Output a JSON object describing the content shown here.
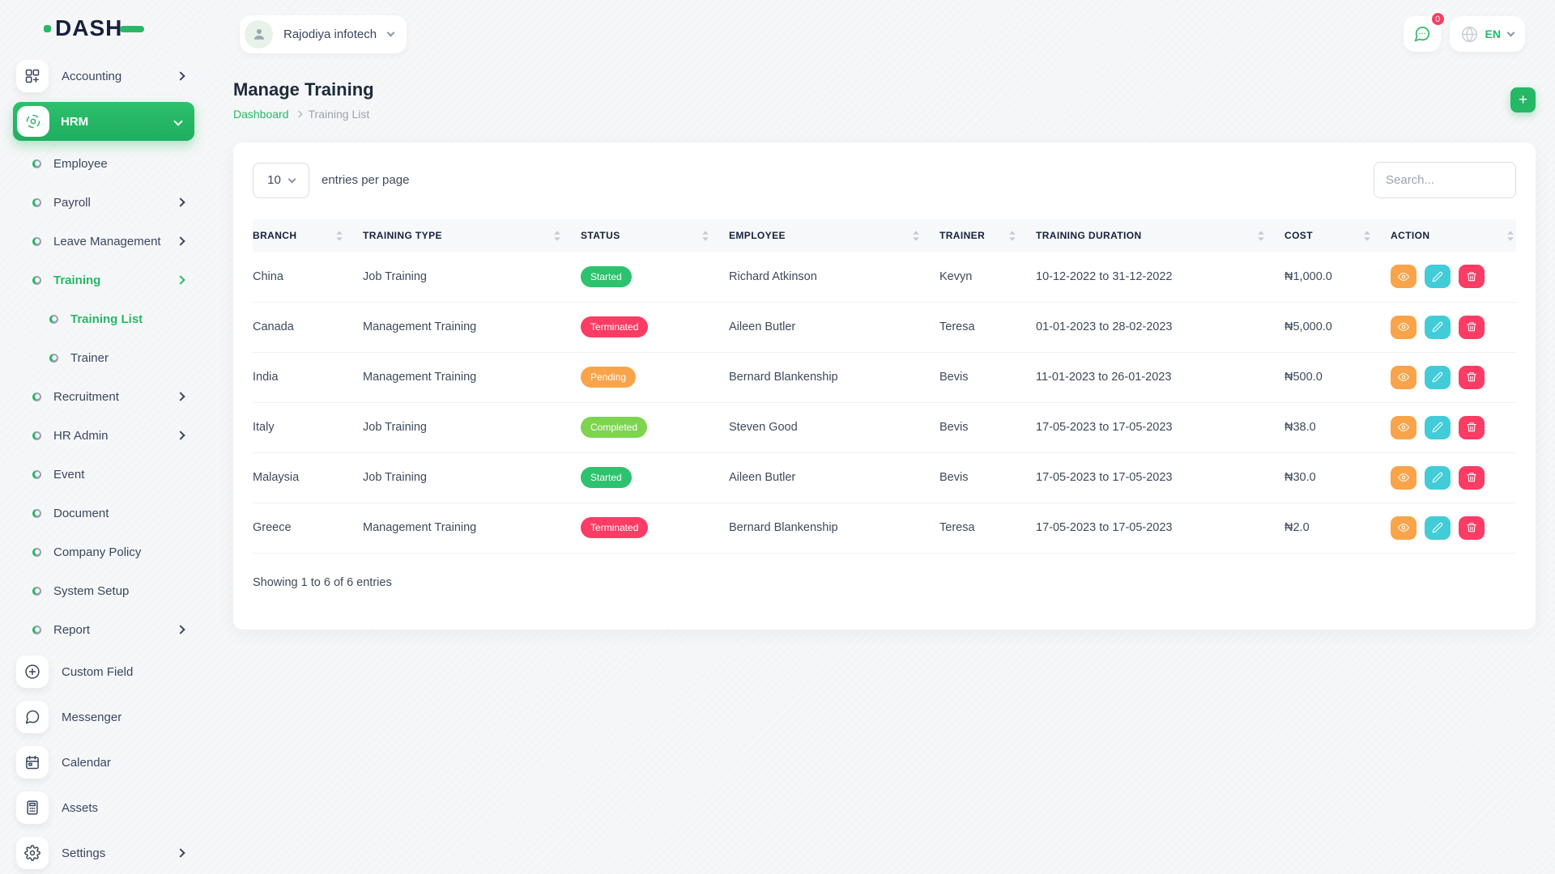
{
  "brand": {
    "name": "DASH"
  },
  "topbar": {
    "company_name": "Rajodiya infotech",
    "chat_badge": "0",
    "language": "EN"
  },
  "page": {
    "title": "Manage Training",
    "breadcrumb_home": "Dashboard",
    "breadcrumb_current": "Training List",
    "add_button": "+"
  },
  "sidebar": {
    "items": [
      {
        "label": "Accounting",
        "style": "box",
        "icon": "grid-plus-icon",
        "chevron": "right"
      },
      {
        "label": "HRM",
        "style": "box",
        "icon": "hrm-icon",
        "chevron": "down",
        "active_main": true
      },
      {
        "label": "Employee",
        "style": "bullet"
      },
      {
        "label": "Payroll",
        "style": "bullet",
        "chevron": "right"
      },
      {
        "label": "Leave Management",
        "style": "bullet",
        "chevron": "right"
      },
      {
        "label": "Training",
        "style": "bullet",
        "chevron": "right",
        "active": true
      },
      {
        "label": "Training List",
        "style": "bullet",
        "indent": 1,
        "active": true
      },
      {
        "label": "Trainer",
        "style": "bullet",
        "indent": 1
      },
      {
        "label": "Recruitment",
        "style": "bullet",
        "chevron": "right"
      },
      {
        "label": "HR Admin",
        "style": "bullet",
        "chevron": "right"
      },
      {
        "label": "Event",
        "style": "bullet"
      },
      {
        "label": "Document",
        "style": "bullet"
      },
      {
        "label": "Company Policy",
        "style": "bullet"
      },
      {
        "label": "System Setup",
        "style": "bullet"
      },
      {
        "label": "Report",
        "style": "bullet",
        "chevron": "right"
      },
      {
        "label": "Custom Field",
        "style": "box",
        "icon": "circle-plus-icon"
      },
      {
        "label": "Messenger",
        "style": "box",
        "icon": "chat-icon"
      },
      {
        "label": "Calendar",
        "style": "box",
        "icon": "calendar-icon"
      },
      {
        "label": "Assets",
        "style": "box",
        "icon": "calculator-icon"
      },
      {
        "label": "Settings",
        "style": "box",
        "icon": "gear-icon",
        "chevron": "right"
      }
    ]
  },
  "table_card": {
    "entries_per_page_value": "10",
    "entries_per_page_label": "entries per page",
    "search_placeholder": "Search...",
    "columns": [
      "BRANCH",
      "TRAINING TYPE",
      "STATUS",
      "EMPLOYEE",
      "TRAINER",
      "TRAINING DURATION",
      "COST",
      "ACTION"
    ],
    "rows": [
      {
        "branch": "China",
        "training_type": "Job Training",
        "status": "Started",
        "employee": "Richard Atkinson",
        "trainer": "Kevyn",
        "duration": "10-12-2022 to 31-12-2022",
        "cost": "₦1,000.0"
      },
      {
        "branch": "Canada",
        "training_type": "Management Training",
        "status": "Terminated",
        "employee": "Aileen Butler",
        "trainer": "Teresa",
        "duration": "01-01-2023 to 28-02-2023",
        "cost": "₦5,000.0"
      },
      {
        "branch": "India",
        "training_type": "Management Training",
        "status": "Pending",
        "employee": "Bernard Blankenship",
        "trainer": "Bevis",
        "duration": "11-01-2023 to 26-01-2023",
        "cost": "₦500.0"
      },
      {
        "branch": "Italy",
        "training_type": "Job Training",
        "status": "Completed",
        "employee": "Steven Good",
        "trainer": "Bevis",
        "duration": "17-05-2023 to 17-05-2023",
        "cost": "₦38.0"
      },
      {
        "branch": "Malaysia",
        "training_type": "Job Training",
        "status": "Started",
        "employee": "Aileen Butler",
        "trainer": "Bevis",
        "duration": "17-05-2023 to 17-05-2023",
        "cost": "₦30.0"
      },
      {
        "branch": "Greece",
        "training_type": "Management Training",
        "status": "Terminated",
        "employee": "Bernard Blankenship",
        "trainer": "Teresa",
        "duration": "17-05-2023 to 17-05-2023",
        "cost": "₦2.0"
      }
    ],
    "footer": "Showing 1 to 6 of 6 entries"
  },
  "colors": {
    "accent": "#27b966",
    "status": {
      "Started": "#2dc26e",
      "Terminated": "#fc3c64",
      "Pending": "#f9a44a",
      "Completed": "#7ed34f"
    },
    "action_view": "#f9a44a",
    "action_edit": "#41ccd7",
    "action_delete": "#fc3c64"
  }
}
